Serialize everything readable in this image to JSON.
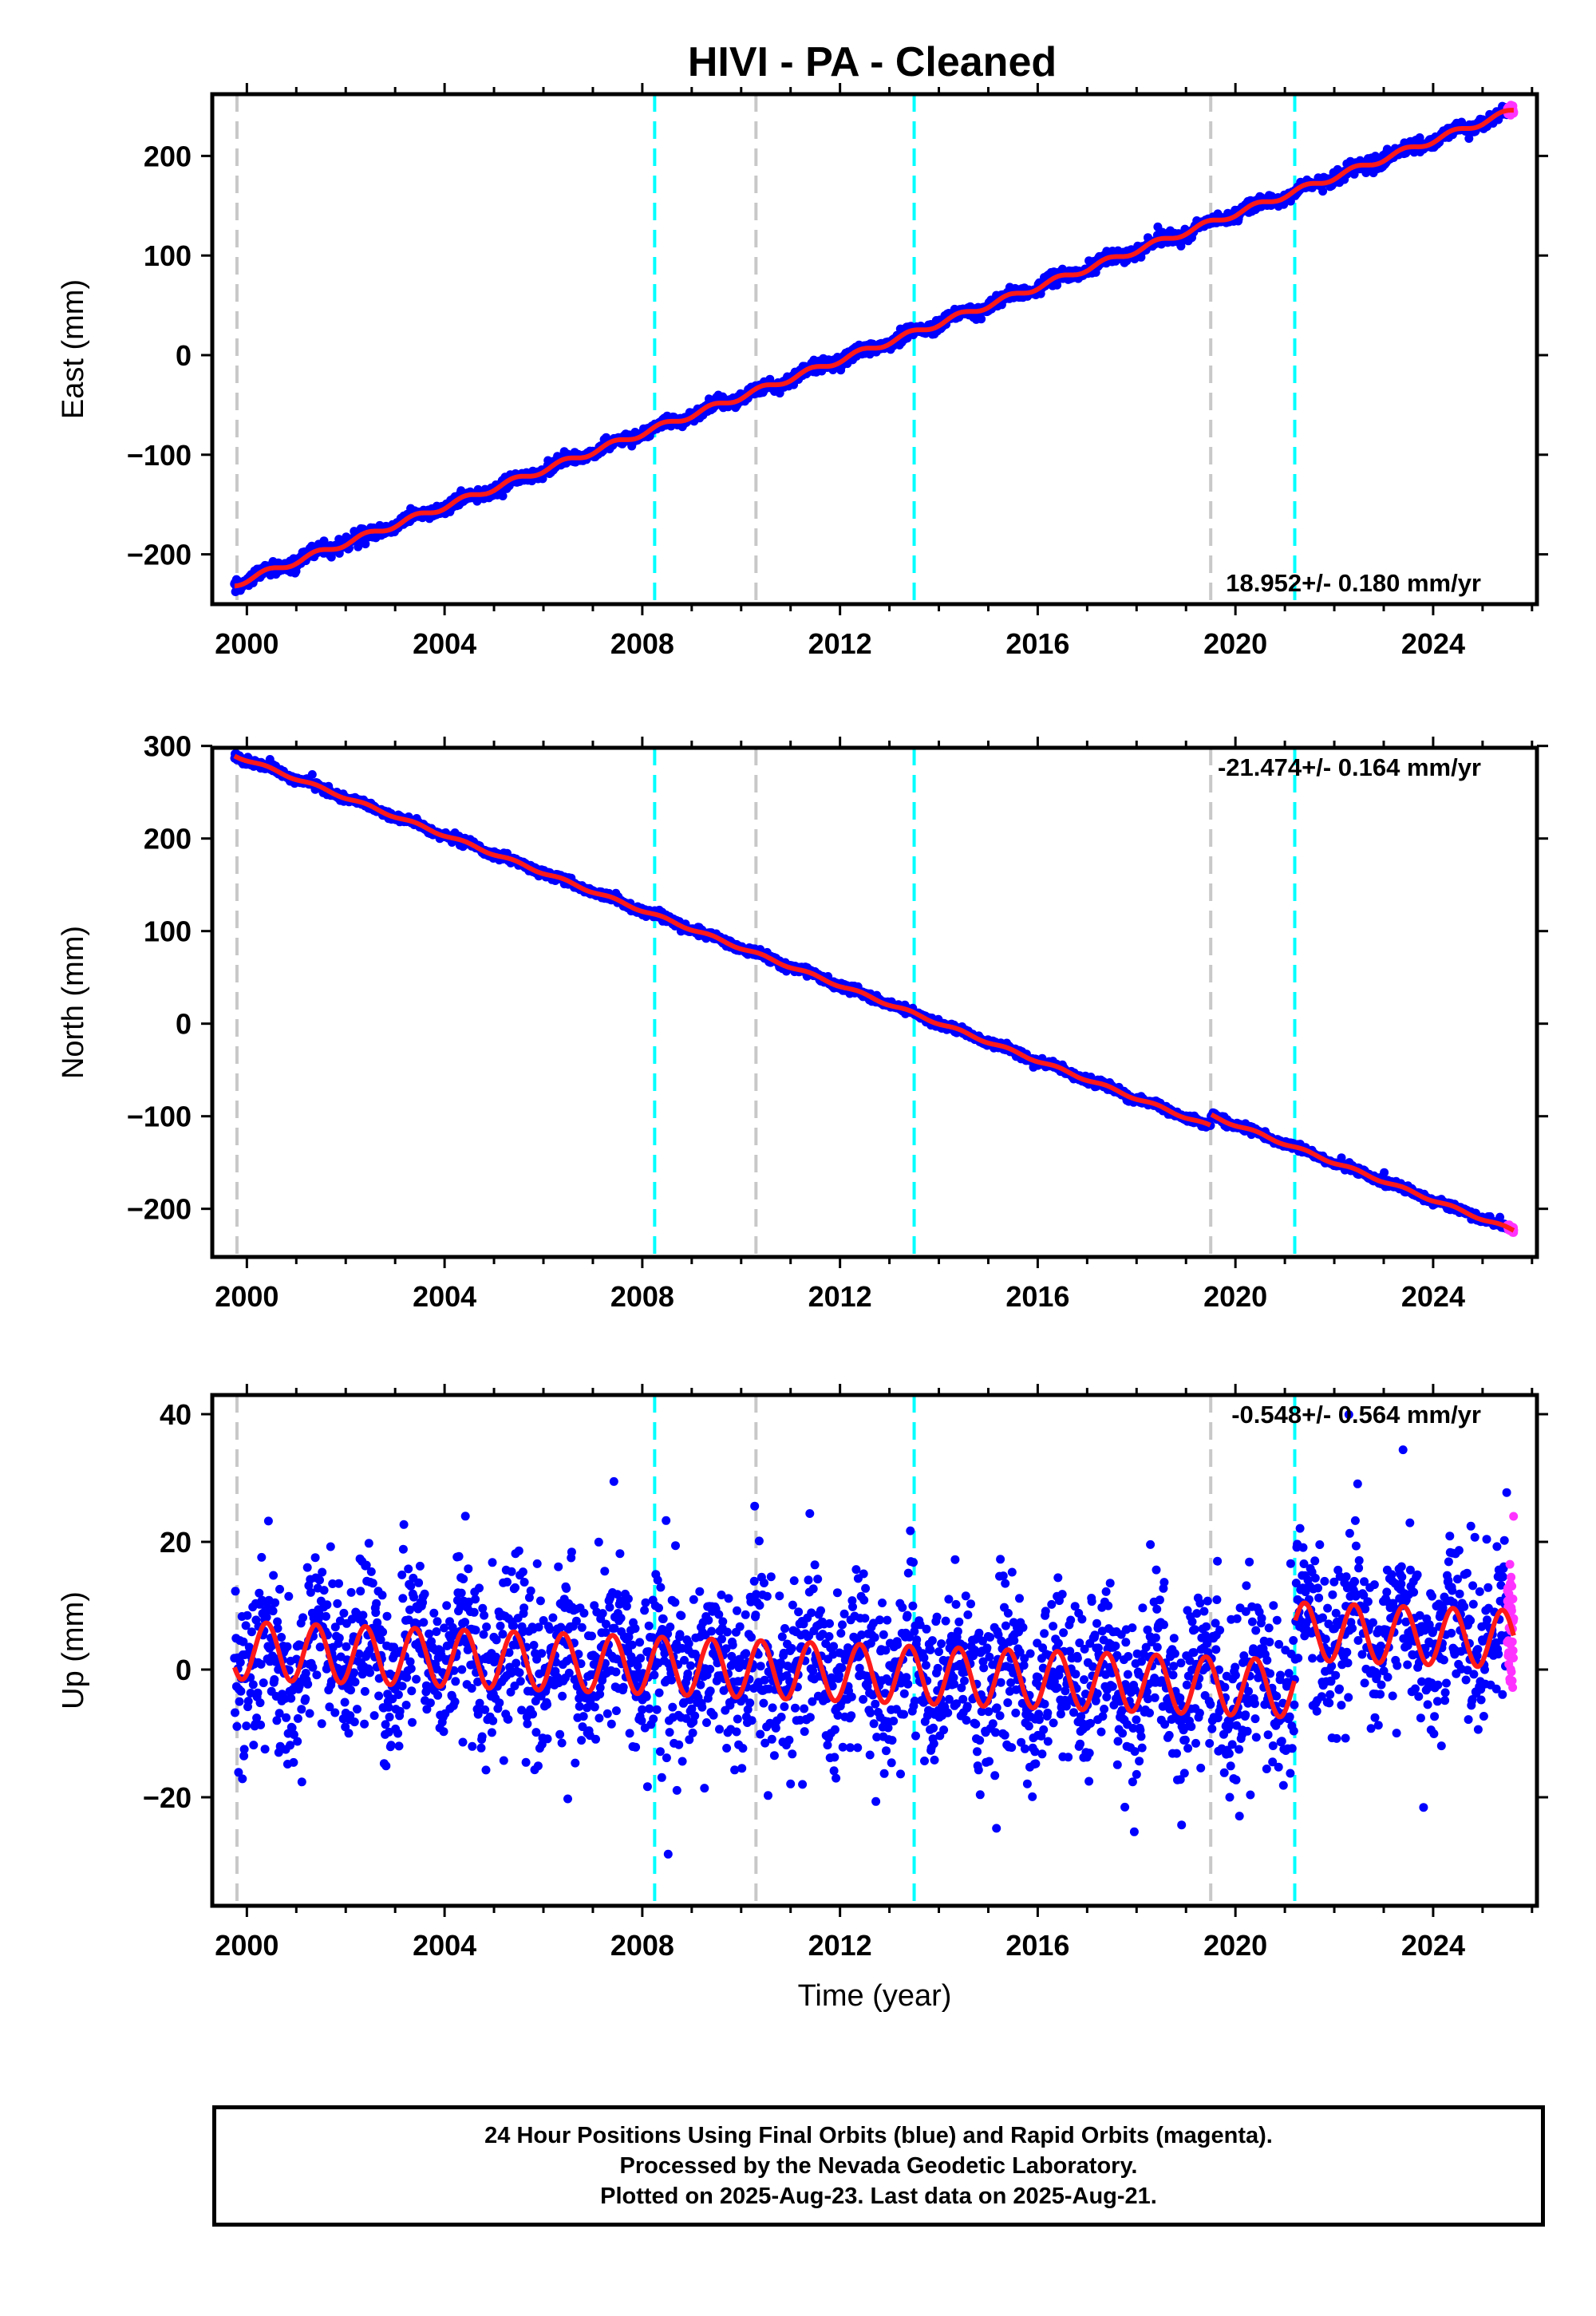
{
  "title": "HIVI  - PA - Cleaned",
  "colors": {
    "final_points": "#0000ff",
    "rapid_points": "#ff33ff",
    "model": "#ff1a1a",
    "equipment_change": "#c8c8c8",
    "earthquake": "#00ffff"
  },
  "chart_data": [
    {
      "type": "scatter",
      "panel": "east",
      "ylabel": "East (mm)",
      "xlim": [
        1999.3,
        2026.1
      ],
      "ylim": [
        -250,
        262
      ],
      "yticks": [
        -200,
        -100,
        0,
        100,
        200
      ],
      "xticks": [
        2000,
        2004,
        2008,
        2012,
        2016,
        2020,
        2024
      ],
      "grid": false,
      "rate_label": "18.952+/- 0.180 mm/yr",
      "rate_label_position": "bottom-right",
      "trend": {
        "rate_mm_per_yr": 18.952,
        "start": [
          1999.75,
          -230
        ],
        "end": [
          2025.6,
          245
        ]
      },
      "seasonal_amplitude_mm": 3,
      "offsets": [],
      "scatter_mm": 3,
      "data_span": [
        1999.75,
        2025.63
      ],
      "rapid_span": [
        2025.5,
        2025.63
      ],
      "equipment_changes": [
        1999.8,
        2010.3,
        2019.5
      ],
      "earthquakes": [
        2008.25,
        2013.5,
        2021.2
      ]
    },
    {
      "type": "scatter",
      "panel": "north",
      "ylabel": "North (mm)",
      "xlim": [
        1999.3,
        2026.1
      ],
      "ylim": [
        -252,
        298
      ],
      "yticks": [
        -200,
        -100,
        0,
        100,
        200,
        300
      ],
      "xticks": [
        2000,
        2004,
        2008,
        2012,
        2016,
        2020,
        2024
      ],
      "grid": false,
      "rate_label": "-21.474+/- 0.164 mm/yr",
      "rate_label_position": "top-right",
      "trend": {
        "rate_mm_per_yr": -21.474,
        "start": [
          1999.75,
          290
        ],
        "end": [
          2025.6,
          -235
        ]
      },
      "seasonal_amplitude_mm": 1.5,
      "offsets": [
        {
          "year": 2019.5,
          "mm": 12
        }
      ],
      "scatter_mm": 2,
      "data_span": [
        1999.75,
        2025.63
      ],
      "rapid_span": [
        2025.5,
        2025.63
      ],
      "equipment_changes": [
        1999.8,
        2010.3,
        2019.5
      ],
      "earthquakes": [
        2008.25,
        2013.5,
        2021.2
      ]
    },
    {
      "type": "scatter",
      "panel": "up",
      "ylabel": "Up (mm)",
      "xlabel": "Time (year)",
      "xlim": [
        1999.3,
        2026.1
      ],
      "ylim": [
        -37,
        43
      ],
      "yticks": [
        -20,
        0,
        20,
        40
      ],
      "xticks": [
        2000,
        2004,
        2008,
        2012,
        2016,
        2020,
        2024
      ],
      "grid": false,
      "rate_label": "-0.548+/- 0.564 mm/yr",
      "rate_label_position": "top-right",
      "trend": {
        "rate_mm_per_yr": -0.548,
        "start": [
          1999.75,
          3
        ],
        "end": [
          2021.2,
          -3
        ]
      },
      "seasonal_amplitude_mm": 4.5,
      "offsets": [
        {
          "year": 2021.2,
          "mm": 9
        }
      ],
      "scatter_mm": 6.5,
      "data_span": [
        1999.75,
        2025.63
      ],
      "rapid_span": [
        2025.5,
        2025.63
      ],
      "equipment_changes": [
        1999.8,
        2010.3,
        2019.5
      ],
      "earthquakes": [
        2008.25,
        2013.5,
        2021.2
      ]
    }
  ],
  "footer": {
    "line1": "24 Hour Positions Using Final Orbits (blue) and Rapid Orbits (magenta).",
    "line2": "Processed by the Nevada Geodetic Laboratory.",
    "line3": "Plotted on 2025-Aug-23. Last data on 2025-Aug-21."
  }
}
